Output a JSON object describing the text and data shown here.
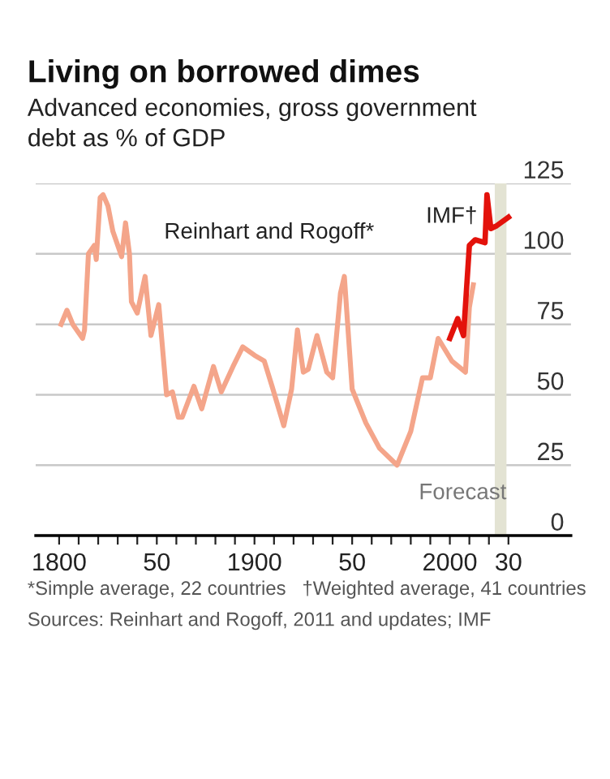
{
  "chart_data": {
    "type": "line",
    "title": "Living on borrowed dimes",
    "subtitle": "Advanced economies, gross government\ndebt as % of GDP",
    "series": [
      {
        "name": "Reinhart and Rogoff*",
        "color": "#f4a58a",
        "x": [
          1801,
          1804,
          1807,
          1812,
          1813,
          1815,
          1818,
          1819,
          1821,
          1822.5,
          1825,
          1827.5,
          1832,
          1834,
          1836,
          1837,
          1840,
          1844,
          1847,
          1851,
          1855,
          1858,
          1861,
          1863,
          1869,
          1873,
          1879,
          1883,
          1889,
          1894,
          1900,
          1905,
          1909,
          1915,
          1919,
          1922,
          1925,
          1927.5,
          1932,
          1937,
          1940,
          1944,
          1946,
          1950,
          1957,
          1964,
          1973,
          1980,
          1986,
          1990,
          1994,
          2001,
          2008,
          2010,
          2012
        ],
        "values": [
          75,
          80,
          75,
          70,
          73,
          100,
          103,
          98,
          120,
          121,
          117,
          108,
          99,
          111,
          100,
          83,
          79,
          92,
          71,
          82,
          50,
          51,
          42,
          42,
          53,
          45,
          60,
          51,
          60,
          67,
          64,
          62,
          53,
          39,
          52,
          73,
          58,
          59,
          71,
          58,
          56,
          86,
          92,
          52,
          40,
          31,
          25,
          37,
          56,
          56,
          70,
          62,
          58,
          81,
          89
        ]
      },
      {
        "name": "IMF†",
        "color": "#e3120b",
        "x": [
          2000,
          2004,
          2007,
          2010,
          2013,
          2018,
          2019,
          2021,
          2024,
          2030
        ],
        "values": [
          70,
          77,
          71,
          103,
          105,
          104,
          121,
          109,
          110,
          113
        ]
      }
    ],
    "xlim": [
      1788,
      2062
    ],
    "ylim": [
      0,
      125
    ],
    "xticks": [
      {
        "value": 1800,
        "label": "1800"
      },
      {
        "value": 1810,
        "label": null
      },
      {
        "value": 1820,
        "label": null
      },
      {
        "value": 1830,
        "label": null
      },
      {
        "value": 1840,
        "label": null
      },
      {
        "value": 1850,
        "label": "50"
      },
      {
        "value": 1860,
        "label": null
      },
      {
        "value": 1870,
        "label": null
      },
      {
        "value": 1880,
        "label": null
      },
      {
        "value": 1890,
        "label": null
      },
      {
        "value": 1900,
        "label": "1900"
      },
      {
        "value": 1910,
        "label": null
      },
      {
        "value": 1920,
        "label": null
      },
      {
        "value": 1930,
        "label": null
      },
      {
        "value": 1940,
        "label": null
      },
      {
        "value": 1950,
        "label": "50"
      },
      {
        "value": 1960,
        "label": null
      },
      {
        "value": 1970,
        "label": null
      },
      {
        "value": 1980,
        "label": null
      },
      {
        "value": 1990,
        "label": null
      },
      {
        "value": 2000,
        "label": "2000"
      },
      {
        "value": 2010,
        "label": null
      },
      {
        "value": 2020,
        "label": null
      },
      {
        "value": 2030,
        "label": "30"
      }
    ],
    "yticks": [
      0,
      25,
      50,
      75,
      100,
      125
    ],
    "bands": [
      {
        "axis": "x",
        "from": 2023,
        "to": 2029,
        "label": "Forecast",
        "color": "#e3e3d3"
      }
    ],
    "grid": "y",
    "legend": false,
    "marker": "none",
    "line_style": "solid",
    "annotations": [
      "*Simple average, 22 countries   †Weighted average, 41 countries",
      "Sources: Reinhart and Rogoff, 2011 and updates; IMF"
    ]
  }
}
